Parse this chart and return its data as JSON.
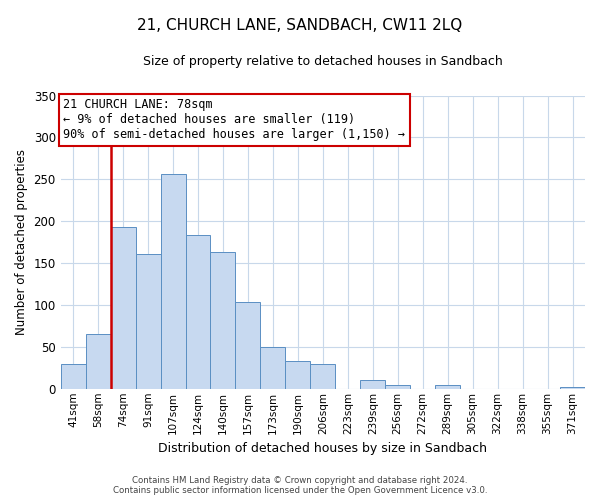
{
  "title": "21, CHURCH LANE, SANDBACH, CW11 2LQ",
  "subtitle": "Size of property relative to detached houses in Sandbach",
  "xlabel": "Distribution of detached houses by size in Sandbach",
  "ylabel": "Number of detached properties",
  "bar_labels": [
    "41sqm",
    "58sqm",
    "74sqm",
    "91sqm",
    "107sqm",
    "124sqm",
    "140sqm",
    "157sqm",
    "173sqm",
    "190sqm",
    "206sqm",
    "223sqm",
    "239sqm",
    "256sqm",
    "272sqm",
    "289sqm",
    "305sqm",
    "322sqm",
    "338sqm",
    "355sqm",
    "371sqm"
  ],
  "bar_values": [
    30,
    65,
    193,
    161,
    256,
    184,
    163,
    104,
    50,
    33,
    30,
    0,
    11,
    4,
    0,
    5,
    0,
    0,
    0,
    0,
    2
  ],
  "bar_color": "#c7d9f0",
  "bar_edge_color": "#5a8fc3",
  "vline_x_index": 2,
  "vline_color": "#cc0000",
  "ylim": [
    0,
    350
  ],
  "yticks": [
    0,
    50,
    100,
    150,
    200,
    250,
    300,
    350
  ],
  "annotation_title": "21 CHURCH LANE: 78sqm",
  "annotation_line1": "← 9% of detached houses are smaller (119)",
  "annotation_line2": "90% of semi-detached houses are larger (1,150) →",
  "annotation_box_color": "#ffffff",
  "annotation_box_edge": "#cc0000",
  "footer_line1": "Contains HM Land Registry data © Crown copyright and database right 2024.",
  "footer_line2": "Contains public sector information licensed under the Open Government Licence v3.0.",
  "background_color": "#ffffff",
  "grid_color": "#c8d8ea"
}
